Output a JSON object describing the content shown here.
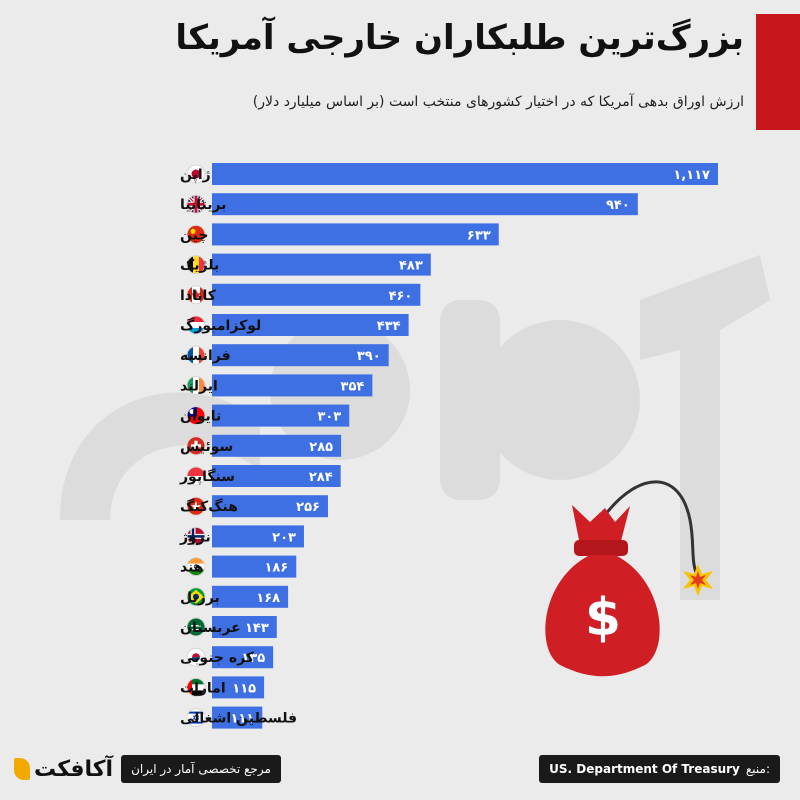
{
  "header": {
    "title": "بزرگ‌ترین طلبکاران خارجی آمریکا",
    "subtitle": "ارزش اوراق بدهی آمریکا که در اختیار کشورهای منتخب است (بر اساس میلیارد دلار)"
  },
  "colors": {
    "bar": "#3e6fe3",
    "accent": "#c8161d",
    "bag": "#d01f24",
    "dark": "#1a1a1a"
  },
  "chart_data": {
    "type": "bar",
    "orientation": "horizontal",
    "title": "بزرگ‌ترین طلبکاران خارجی آمریکا",
    "subtitle": "ارزش اوراق بدهی آمریکا که در اختیار کشورهای منتخب است (بر اساس میلیارد دلار)",
    "categories": [
      "ژاپن",
      "بریتانیا",
      "چین",
      "بلژیک",
      "کانادا",
      "لوکزامبورگ",
      "فرانسه",
      "ایرلند",
      "تایوان",
      "سوئیس",
      "سنگاپور",
      "هنگ‌کنگ",
      "نروژ",
      "هند",
      "برزیل",
      "عربستان",
      "کره جنوبی",
      "امارات",
      "فلسطین اشغالی"
    ],
    "values": [
      1117,
      940,
      633,
      483,
      460,
      434,
      390,
      354,
      303,
      285,
      284,
      256,
      203,
      186,
      168,
      143,
      135,
      115,
      111
    ],
    "value_labels": [
      "۱,۱۱۷",
      "۹۴۰",
      "۶۳۳",
      "۴۸۳",
      "۴۶۰",
      "۴۳۴",
      "۳۹۰",
      "۳۵۴",
      "۳۰۳",
      "۲۸۵",
      "۲۸۴",
      "۲۵۶",
      "۲۰۳",
      "۱۸۶",
      "۱۶۸",
      "۱۴۳",
      "۱۳۵",
      "۱۱۵",
      "۱۱۱"
    ],
    "flags": [
      "japan",
      "uk",
      "china",
      "belgium",
      "canada",
      "luxembourg",
      "france",
      "ireland",
      "taiwan",
      "switzerland",
      "singapore",
      "hongkong",
      "norway",
      "india",
      "brazil",
      "saudi",
      "korea",
      "uae",
      "israel"
    ],
    "grid": false,
    "legend": "none"
  },
  "illustration": {
    "icon": "money-bag-bomb-icon",
    "symbol": "$"
  },
  "footer": {
    "logo_text": "آکافکت",
    "reference_label": "مرجع تخصصی آمار در ایران",
    "source_label": "منبع:",
    "source_value": "US. Department Of Treasury"
  }
}
